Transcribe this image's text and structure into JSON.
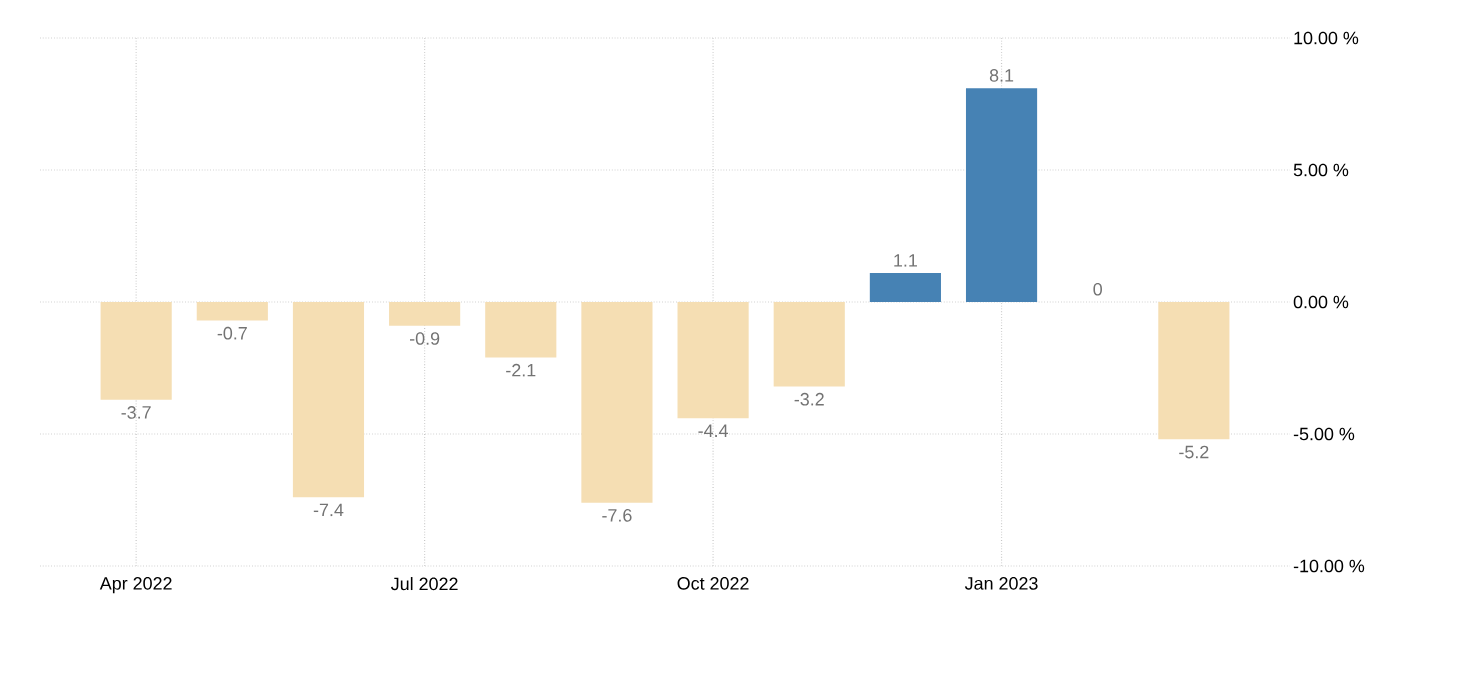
{
  "chart_data": {
    "type": "bar",
    "x": [
      "2022-04",
      "2022-05",
      "2022-06",
      "2022-07",
      "2022-08",
      "2022-09",
      "2022-10",
      "2022-11",
      "2022-12",
      "2023-01",
      "2023-02",
      "2023-03"
    ],
    "values": [
      -3.7,
      -0.7,
      -7.4,
      -0.9,
      -2.1,
      -7.6,
      -4.4,
      -3.2,
      1.1,
      8.1,
      0,
      -5.2
    ],
    "colors": [
      "#f5deb3",
      "#f5deb3",
      "#f5deb3",
      "#f5deb3",
      "#f5deb3",
      "#f5deb3",
      "#f5deb3",
      "#f5deb3",
      "#4682b4",
      "#4682b4",
      "#4682b4",
      "#f5deb3"
    ],
    "xlim": [
      "2022-03",
      "2023-04"
    ],
    "xticks": [
      {
        "value": "2022-04",
        "label": "Apr 2022"
      },
      {
        "value": "2022-07",
        "label": "Jul 2022"
      },
      {
        "value": "2022-10",
        "label": "Oct 2022"
      },
      {
        "value": "2023-01",
        "label": "Jan 2023"
      }
    ],
    "ylim": [
      -10,
      10
    ],
    "yticks": [
      {
        "value": -10,
        "label": "-10.00 %"
      },
      {
        "value": -5,
        "label": "-5.00 %"
      },
      {
        "value": 0,
        "label": "0.00 %"
      },
      {
        "value": 5,
        "label": "5.00 %"
      },
      {
        "value": 10,
        "label": "10.00 %"
      }
    ],
    "grid": true,
    "data_labels": true
  }
}
